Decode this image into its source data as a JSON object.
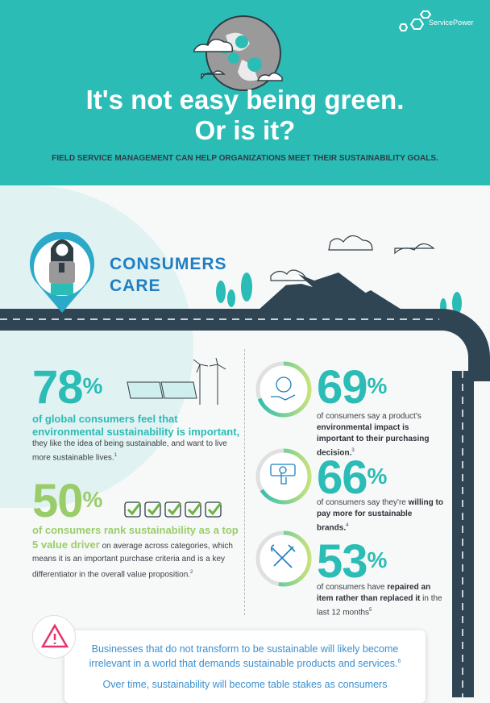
{
  "brand": {
    "name": "ServicePower",
    "accent": "#2bbcb6",
    "road": "#2f4553",
    "blue": "#1f7fc2",
    "green": "#9acd6a",
    "warning": "#e8336b"
  },
  "header": {
    "title_line1": "It's not easy being green.",
    "title_line2": "Or is it?",
    "subtitle": "FIELD SERVICE MANAGEMENT CAN HELP ORGANIZATIONS MEET THEIR SUSTAINABILITY GOALS."
  },
  "section": {
    "title_line1": "CONSUMERS",
    "title_line2": "CARE"
  },
  "stats_left": [
    {
      "value": "78",
      "unit": "%",
      "lead": "of global consumers feel that environmental sustainability is important,",
      "body": " they like the idea of being sustainable, and want to live more sustainable lives.",
      "note": "1",
      "icon": "solar-panels-wind-turbines-icon"
    },
    {
      "value": "50",
      "unit": "%",
      "lead": "of consumers rank sustainability as a top 5 value driver",
      "body": " on average across categories, which means it is an important purchase criteria and is a key differentiator in the overall value proposition.",
      "note": "2",
      "icon": "checkboxes-icon"
    }
  ],
  "stats_right": [
    {
      "value": "69",
      "unit": "%",
      "pre": "of consumers say a product's ",
      "bold": "environmental impact is important to their purchasing decision.",
      "post": "",
      "note": "3",
      "icon": "globe-hand-icon",
      "percent": 69
    },
    {
      "value": "66",
      "unit": "%",
      "pre": "of consumers say they're ",
      "bold": "willing to pay more for sustainable brands.",
      "post": "",
      "note": "4",
      "icon": "money-hand-icon",
      "percent": 66
    },
    {
      "value": "53",
      "unit": "%",
      "pre": "of consumers have ",
      "bold": "repaired an item rather than replaced it",
      "post": " in the last 12 months",
      "note": "5",
      "icon": "wrench-screwdriver-icon",
      "percent": 53
    }
  ],
  "callout": {
    "p1": "Businesses that do not transform to be sustainable will likely become irrelevant in a world that demands sustainable products and services.",
    "p1_note": "6",
    "p2": "Over time, sustainability will become table stakes as consumers"
  }
}
